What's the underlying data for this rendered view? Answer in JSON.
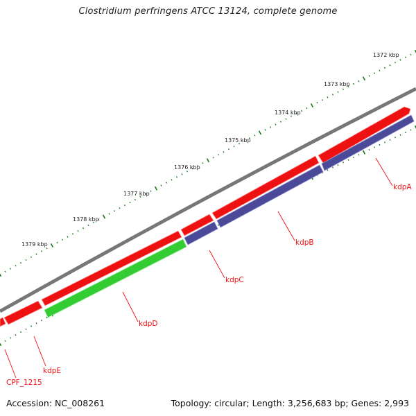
{
  "header": {
    "title": "Clostridium perfringens ATCC 13124, complete genome"
  },
  "footer": {
    "accession": "Accession: NC_008261",
    "summary": "Topology: circular; Length: 3,256,683 bp; Genes: 2,993"
  },
  "colors": {
    "backbone": "#777777",
    "forward_gene": "#ee1111",
    "reverse_gene_kdp": "#4a4a99",
    "kdpD": "#33cc33",
    "ticks": "#1a7a1a",
    "labels": "#ee1111"
  },
  "scale_labels": [
    "1372 kbp",
    "1373 kbp",
    "1374 kbp",
    "1375 kbp",
    "1376 kbp",
    "1377 kbp",
    "1378 kbp",
    "1379 kbp"
  ],
  "genes": [
    {
      "name": "kdpA"
    },
    {
      "name": "kdpB"
    },
    {
      "name": "kdpC"
    },
    {
      "name": "kdpD"
    },
    {
      "name": "kdpE"
    },
    {
      "name": "CPF_1215"
    }
  ]
}
